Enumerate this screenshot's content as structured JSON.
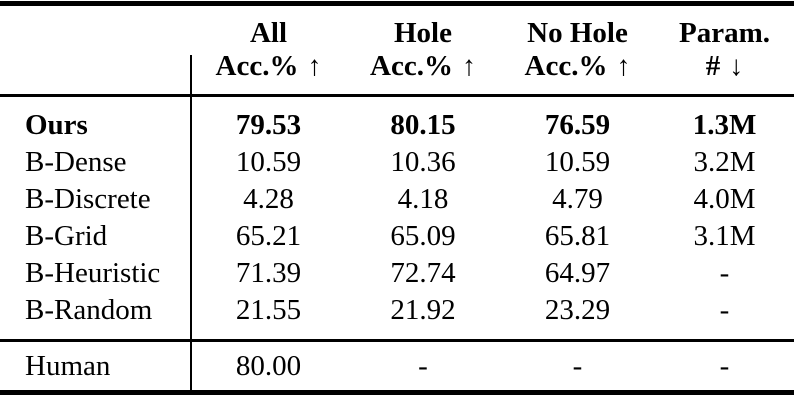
{
  "table": {
    "columns": [
      {
        "title": "All",
        "subtitle": "Acc.%",
        "arrow": "↑"
      },
      {
        "title": "Hole",
        "subtitle": "Acc.%",
        "arrow": "↑"
      },
      {
        "title": "No Hole",
        "subtitle": "Acc.%",
        "arrow": "↑"
      },
      {
        "title": "Param.",
        "subtitle": "#",
        "arrow": "↓"
      }
    ],
    "rows": [
      {
        "label": "Ours",
        "values": [
          "79.53",
          "80.15",
          "76.59",
          "1.3M"
        ]
      },
      {
        "label": "B-Dense",
        "values": [
          "10.59",
          "10.36",
          "10.59",
          "3.2M"
        ]
      },
      {
        "label": "B-Discrete",
        "values": [
          "4.28",
          "4.18",
          "4.79",
          "4.0M"
        ]
      },
      {
        "label": "B-Grid",
        "values": [
          "65.21",
          "65.09",
          "65.81",
          "3.1M"
        ]
      },
      {
        "label": "B-Heuristic",
        "values": [
          "71.39",
          "72.74",
          "64.97",
          "-"
        ]
      },
      {
        "label": "B-Random",
        "values": [
          "21.55",
          "21.92",
          "23.29",
          "-"
        ]
      }
    ],
    "human_row": {
      "label": "Human",
      "values": [
        "80.00",
        "-",
        "-",
        "-"
      ]
    }
  }
}
